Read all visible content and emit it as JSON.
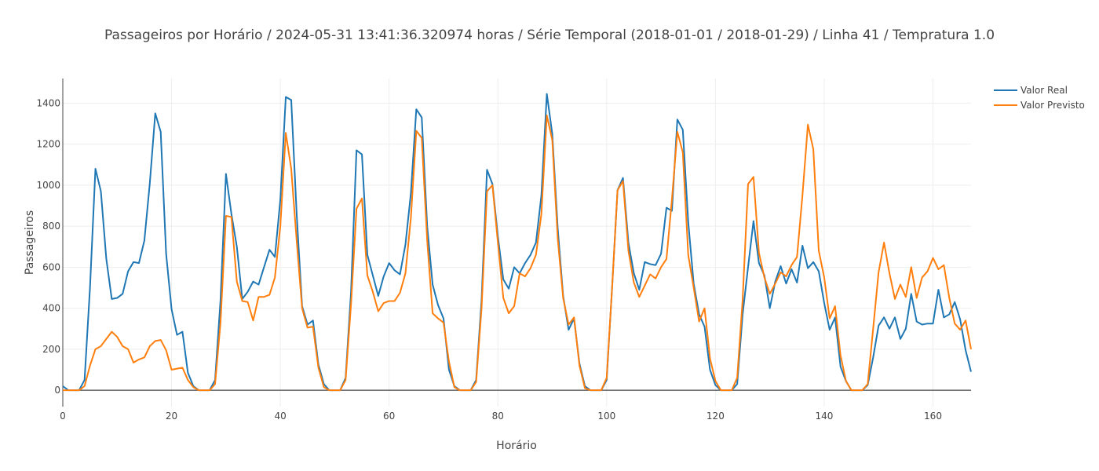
{
  "chart_data": {
    "type": "line",
    "title": "Passageiros por Horário / 2024-05-31 13:41:36.320974 horas / Série Temporal (2018-01-01 / 2018-01-29) / Linha 41 / Tempratura 1.0",
    "xlabel": "Horário",
    "ylabel": "Passageiros",
    "xlim": [
      0,
      167
    ],
    "ylim": [
      -80,
      1520
    ],
    "xticks": [
      0,
      20,
      40,
      60,
      80,
      100,
      120,
      140,
      160
    ],
    "yticks": [
      0,
      200,
      400,
      600,
      800,
      1000,
      1200,
      1400
    ],
    "grid": true,
    "legend": "top-right",
    "series": [
      {
        "name": "Valor Real",
        "color": "#1f77b4",
        "values": [
          20,
          0,
          0,
          0,
          50,
          500,
          1080,
          970,
          640,
          445,
          450,
          470,
          580,
          625,
          620,
          730,
          1010,
          1350,
          1260,
          665,
          395,
          270,
          285,
          85,
          20,
          0,
          0,
          0,
          50,
          440,
          1055,
          860,
          700,
          445,
          480,
          530,
          515,
          600,
          685,
          650,
          930,
          1430,
          1415,
          860,
          410,
          320,
          340,
          125,
          30,
          0,
          0,
          0,
          60,
          480,
          1170,
          1150,
          660,
          560,
          460,
          555,
          620,
          585,
          565,
          710,
          960,
          1370,
          1330,
          800,
          515,
          415,
          350,
          100,
          20,
          0,
          0,
          0,
          50,
          440,
          1075,
          1005,
          750,
          540,
          495,
          600,
          570,
          620,
          660,
          720,
          950,
          1445,
          1250,
          790,
          460,
          295,
          350,
          130,
          20,
          0,
          0,
          0,
          50,
          500,
          975,
          1035,
          720,
          570,
          490,
          625,
          615,
          610,
          665,
          890,
          875,
          1320,
          1270,
          820,
          520,
          370,
          310,
          100,
          25,
          0,
          0,
          0,
          30,
          370,
          600,
          825,
          620,
          560,
          400,
          530,
          605,
          520,
          590,
          525,
          705,
          595,
          625,
          580,
          425,
          295,
          355,
          115,
          45,
          0,
          0,
          0,
          25,
          160,
          315,
          355,
          300,
          355,
          250,
          300,
          470,
          335,
          320,
          325,
          325,
          490,
          355,
          370,
          430,
          345,
          195,
          90
        ]
      },
      {
        "name": "Valor Previsto",
        "color": "#ff7f0e",
        "values": [
          0,
          0,
          0,
          0,
          20,
          120,
          200,
          215,
          250,
          285,
          260,
          215,
          200,
          135,
          150,
          160,
          215,
          240,
          245,
          195,
          100,
          105,
          110,
          50,
          15,
          0,
          0,
          0,
          30,
          330,
          850,
          845,
          530,
          435,
          430,
          340,
          455,
          455,
          465,
          550,
          800,
          1255,
          1080,
          730,
          400,
          305,
          310,
          110,
          15,
          0,
          0,
          0,
          50,
          420,
          885,
          935,
          560,
          480,
          385,
          425,
          435,
          435,
          475,
          570,
          840,
          1265,
          1230,
          730,
          375,
          350,
          330,
          140,
          15,
          0,
          0,
          0,
          40,
          400,
          970,
          1000,
          720,
          450,
          375,
          410,
          570,
          555,
          595,
          660,
          860,
          1340,
          1220,
          740,
          450,
          320,
          355,
          120,
          10,
          0,
          0,
          0,
          60,
          500,
          975,
          1020,
          680,
          525,
          455,
          510,
          565,
          545,
          600,
          640,
          930,
          1260,
          1160,
          660,
          500,
          335,
          400,
          155,
          45,
          0,
          0,
          0,
          60,
          440,
          1005,
          1040,
          670,
          550,
          470,
          520,
          575,
          555,
          610,
          650,
          950,
          1295,
          1175,
          680,
          550,
          350,
          410,
          170,
          45,
          0,
          0,
          0,
          30,
          300,
          575,
          720,
          570,
          445,
          515,
          455,
          600,
          450,
          550,
          580,
          645,
          590,
          610,
          450,
          325,
          295,
          340,
          200
        ]
      }
    ]
  }
}
